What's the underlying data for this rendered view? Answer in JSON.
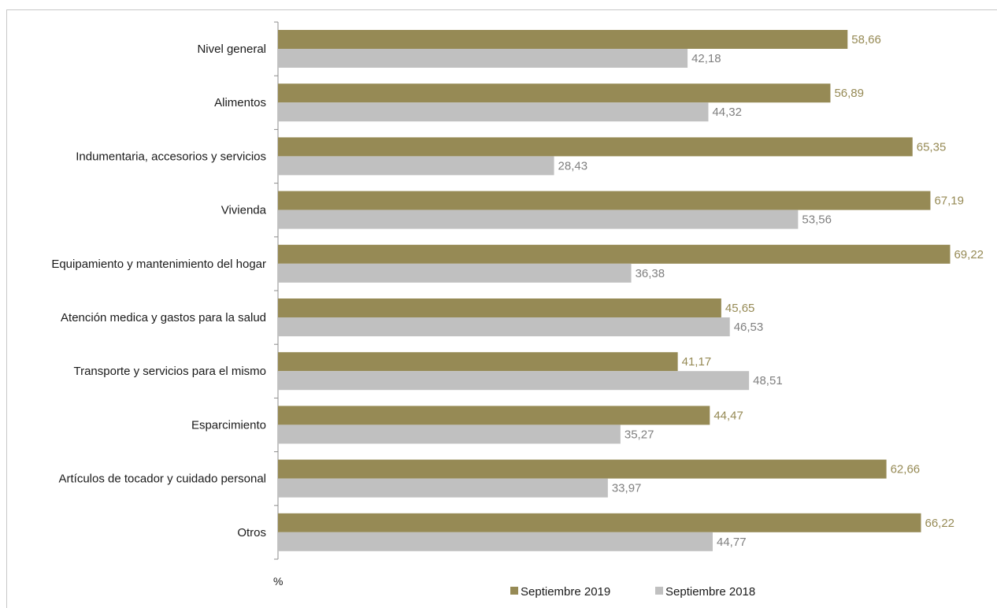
{
  "chart_data": {
    "type": "bar",
    "orientation": "horizontal",
    "unit_label": "%",
    "categories": [
      "Nivel general",
      "Alimentos",
      "Indumentaria, accesorios y servicios",
      "Vivienda",
      "Equipamiento y mantenimiento del hogar",
      "Atención medica y gastos para la salud",
      "Transporte y servicios para el mismo",
      "Esparcimiento",
      "Artículos de tocador y cuidado personal",
      "Otros"
    ],
    "series": [
      {
        "name": "Septiembre 2019",
        "color": "#968a55",
        "label_color": "#968a55",
        "values": [
          58.66,
          56.89,
          65.35,
          67.19,
          69.22,
          45.65,
          41.17,
          44.47,
          62.66,
          66.22
        ],
        "labels": [
          "58,66",
          "56,89",
          "65,35",
          "67,19",
          "69,22",
          "45,65",
          "41,17",
          "44,47",
          "62,66",
          "66,22"
        ]
      },
      {
        "name": "Septiembre 2018",
        "color": "#c0c0c0",
        "label_color": "#7f7f7f",
        "values": [
          42.18,
          44.32,
          28.43,
          53.56,
          36.38,
          46.53,
          48.51,
          35.27,
          33.97,
          44.77
        ],
        "labels": [
          "42,18",
          "44,32",
          "28,43",
          "53,56",
          "36,38",
          "46,53",
          "48,51",
          "35,27",
          "33,97",
          "44,77"
        ]
      }
    ],
    "xlim": [
      0,
      70
    ],
    "grid": false,
    "legend_position": "bottom"
  }
}
